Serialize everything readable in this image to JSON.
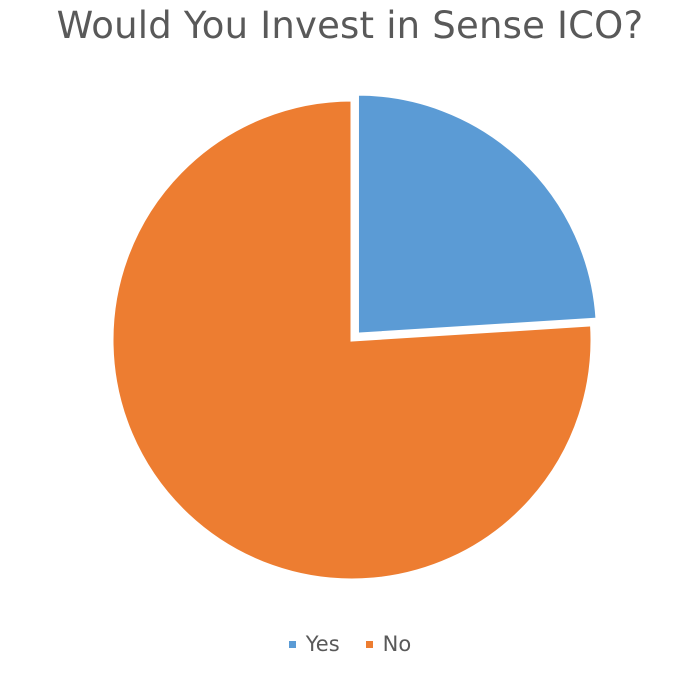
{
  "chart_data": {
    "type": "pie",
    "title": "Would You Invest in Sense ICO?",
    "categories": [
      "Yes",
      "No"
    ],
    "values": [
      24,
      76
    ],
    "colors": [
      "#5B9BD5",
      "#ED7D31"
    ],
    "legend_position": "bottom",
    "exploded_slice": "Yes"
  }
}
